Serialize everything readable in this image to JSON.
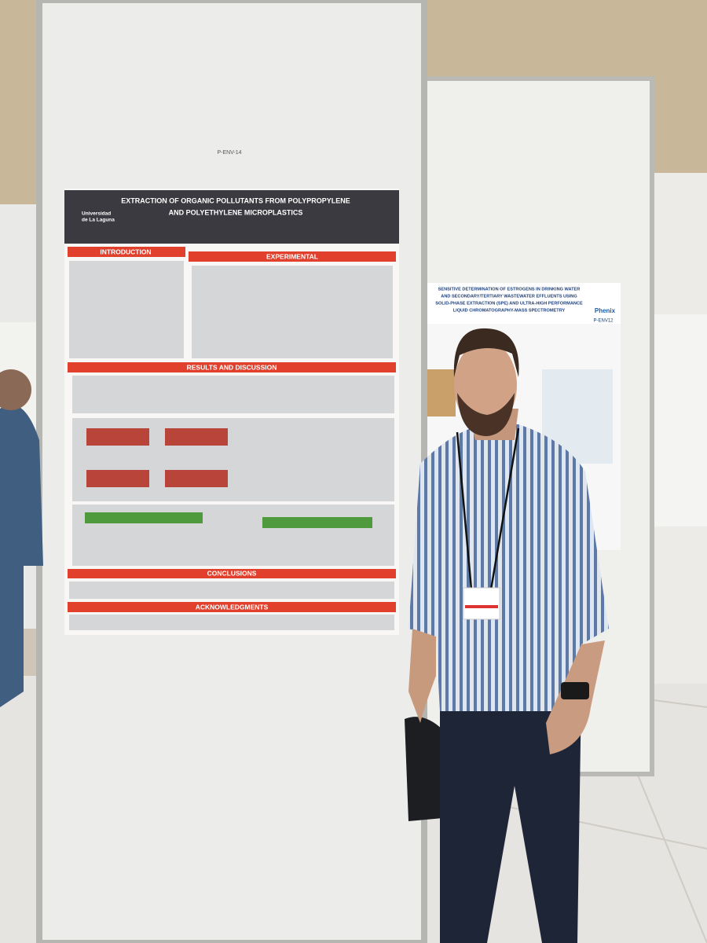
{
  "left_poster": {
    "code": "P-ENV-14",
    "title": [
      "EXTRACTION OF ORGANIC POLLUTANTS FROM POLYPROPYLENE",
      "AND POLYETHYLENE MICROPLASTICS"
    ],
    "institution": [
      "Universidad",
      "de La Laguna"
    ],
    "sections": [
      "INTRODUCTION",
      "EXPERIMENTAL",
      "RESULTS AND DISCUSSION",
      "CONCLUSIONS",
      "ACKNOWLEDGMENTS"
    ]
  },
  "right_poster": {
    "title": [
      "SENSITIVE DETERMINATION OF ESTROGENS IN DRINKING WATER",
      "AND SECONDARY/TERTIARY WASTEWATER EFFLUENTS USING",
      "SOLID-PHASE EXTRACTION (SPE) AND ULTRA-HIGH PERFORMANCE",
      "LIQUID CHROMATOGRAPHY-MASS SPECTROMETRY"
    ],
    "code": "P-ENV12",
    "logo": "Phenix"
  }
}
